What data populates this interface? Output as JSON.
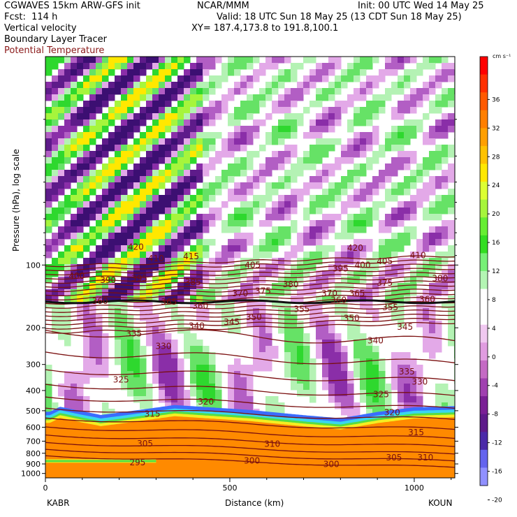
{
  "header": {
    "model": "CGWAVES 15km ARW-GFS init",
    "org": "NCAR/MMM",
    "init": "Init: 00 UTC Wed 14 May 25",
    "fcst": "Fcst:  114 h",
    "valid": "Valid: 18 UTC Sun 18 May 25 (13 CDT Sun 18 May 25)",
    "field1": "Vertical velocity",
    "xy": "XY= 187.4,173.8 to 191.8,100.1",
    "field2": "Boundary Layer Tracer",
    "field3": "Potential Temperature"
  },
  "chart_data": {
    "type": "heatmap",
    "ylabel": "Pressure (hPa), log scale",
    "xlabel": "Distance (km)",
    "x_ticks": [
      "0",
      "500",
      "1000"
    ],
    "y_ticks": [
      "100",
      "200",
      "300",
      "400",
      "500",
      "600",
      "700",
      "800",
      "900",
      "1000"
    ],
    "y_tick_values": [
      100,
      200,
      300,
      400,
      500,
      600,
      700,
      800,
      900,
      1000
    ],
    "x_range": [
      0,
      1110
    ],
    "y_range": [
      10,
      1050
    ],
    "log_y": true,
    "left_station": "KABR",
    "right_station": "KOUN",
    "colorbar": {
      "unit": "cm s⁻¹",
      "labels": [
        "36",
        "32",
        "28",
        "24",
        "20",
        "16",
        "12",
        "8",
        "4",
        "0",
        "-4",
        "-8",
        "-12",
        "-16",
        "-20"
      ],
      "colors": [
        "#ff0000",
        "#ff3000",
        "#ff5a00",
        "#ff7f00",
        "#ff9f00",
        "#ffc200",
        "#ffe800",
        "#ddff33",
        "#a6f53c",
        "#66ee33",
        "#33dd22",
        "#77f077",
        "#b3f5b3",
        "#ffffff",
        "#ffffff",
        "#f0c8f0",
        "#e09ce0",
        "#c46ac4",
        "#a040b0",
        "#7a2095",
        "#5e1b8a",
        "#4a2aa8",
        "#6464ee",
        "#9090ff"
      ]
    },
    "theta_labels": [
      {
        "x": 245,
        "p": 82,
        "v": "420"
      },
      {
        "x": 840,
        "p": 83,
        "v": "420"
      },
      {
        "x": 300,
        "p": 93,
        "v": "410"
      },
      {
        "x": 395,
        "p": 91,
        "v": "415"
      },
      {
        "x": 1010,
        "p": 90,
        "v": "410"
      },
      {
        "x": 920,
        "p": 96,
        "v": "405"
      },
      {
        "x": 562,
        "p": 100,
        "v": "405"
      },
      {
        "x": 85,
        "p": 113,
        "v": "400"
      },
      {
        "x": 800,
        "p": 104,
        "v": "395"
      },
      {
        "x": 860,
        "p": 100,
        "v": "400"
      },
      {
        "x": 1070,
        "p": 116,
        "v": "380"
      },
      {
        "x": 170,
        "p": 118,
        "v": "390"
      },
      {
        "x": 255,
        "p": 116,
        "v": "395"
      },
      {
        "x": 400,
        "p": 121,
        "v": "385"
      },
      {
        "x": 665,
        "p": 124,
        "v": "380"
      },
      {
        "x": 920,
        "p": 122,
        "v": "375"
      },
      {
        "x": 590,
        "p": 133,
        "v": "375"
      },
      {
        "x": 528,
        "p": 137,
        "v": "370"
      },
      {
        "x": 770,
        "p": 137,
        "v": "370"
      },
      {
        "x": 845,
        "p": 137,
        "v": "365"
      },
      {
        "x": 1035,
        "p": 146,
        "v": "360"
      },
      {
        "x": 335,
        "p": 150,
        "v": "365"
      },
      {
        "x": 420,
        "p": 157,
        "v": "360"
      },
      {
        "x": 695,
        "p": 163,
        "v": "355"
      },
      {
        "x": 935,
        "p": 160,
        "v": "355"
      },
      {
        "x": 565,
        "p": 178,
        "v": "350"
      },
      {
        "x": 830,
        "p": 180,
        "v": "350"
      },
      {
        "x": 505,
        "p": 188,
        "v": "345"
      },
      {
        "x": 975,
        "p": 198,
        "v": "345"
      },
      {
        "x": 410,
        "p": 196,
        "v": "340"
      },
      {
        "x": 895,
        "p": 230,
        "v": "340"
      },
      {
        "x": 240,
        "p": 213,
        "v": "335"
      },
      {
        "x": 320,
        "p": 245,
        "v": "330"
      },
      {
        "x": 980,
        "p": 325,
        "v": "335"
      },
      {
        "x": 1015,
        "p": 363,
        "v": "330"
      },
      {
        "x": 205,
        "p": 355,
        "v": "325"
      },
      {
        "x": 910,
        "p": 417,
        "v": "325"
      },
      {
        "x": 435,
        "p": 452,
        "v": "320"
      },
      {
        "x": 940,
        "p": 510,
        "v": "320"
      },
      {
        "x": 290,
        "p": 518,
        "v": "315"
      },
      {
        "x": 1005,
        "p": 635,
        "v": "315"
      },
      {
        "x": 615,
        "p": 723,
        "v": "310"
      },
      {
        "x": 270,
        "p": 719,
        "v": "305"
      },
      {
        "x": 945,
        "p": 838,
        "v": "305"
      },
      {
        "x": 1030,
        "p": 838,
        "v": "310"
      },
      {
        "x": 560,
        "p": 868,
        "v": "300"
      },
      {
        "x": 775,
        "p": 905,
        "v": "300"
      },
      {
        "x": 250,
        "p": 886,
        "v": "295"
      },
      {
        "x": 148,
        "p": 149,
        "v": "360"
      },
      {
        "x": 795,
        "p": 147,
        "v": "360"
      }
    ]
  }
}
